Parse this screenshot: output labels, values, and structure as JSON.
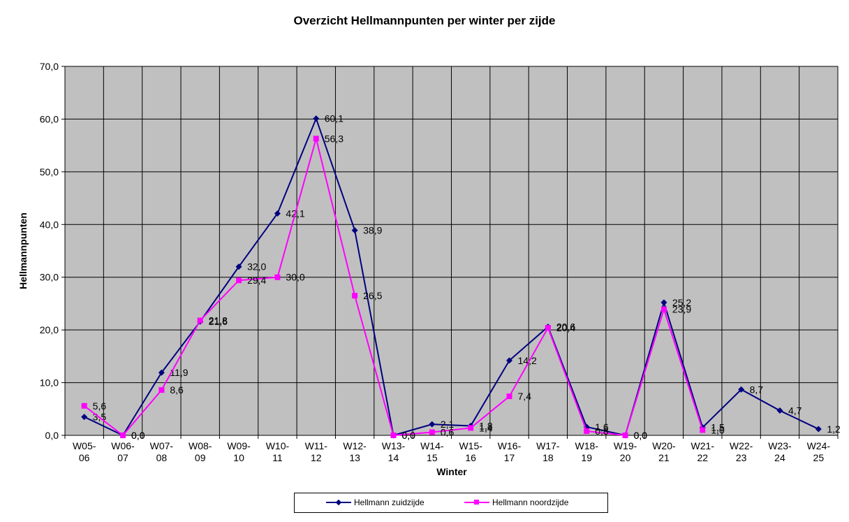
{
  "chart_data": {
    "type": "line",
    "title": "Overzicht Hellmannpunten per winter per zijde",
    "xlabel": "Winter",
    "ylabel": "Hellmannpunten",
    "ylim": [
      0,
      70
    ],
    "yticks": [
      "0,0",
      "10,0",
      "20,0",
      "30,0",
      "40,0",
      "50,0",
      "60,0",
      "70,0"
    ],
    "grid": true,
    "legend_position": "bottom",
    "categories": [
      [
        "W05-",
        "06"
      ],
      [
        "W06-",
        "07"
      ],
      [
        "W07-",
        "08"
      ],
      [
        "W08-",
        "09"
      ],
      [
        "W09-",
        "10"
      ],
      [
        "W10-",
        "11"
      ],
      [
        "W11-",
        "12"
      ],
      [
        "W12-",
        "13"
      ],
      [
        "W13-",
        "14"
      ],
      [
        "W14-",
        "15"
      ],
      [
        "W15-",
        "16"
      ],
      [
        "W16-",
        "17"
      ],
      [
        "W17-",
        "18"
      ],
      [
        "W18-",
        "19"
      ],
      [
        "W19-",
        "20"
      ],
      [
        "W20-",
        "21"
      ],
      [
        "W21-",
        "22"
      ],
      [
        "W22-",
        "23"
      ],
      [
        "W23-",
        "24"
      ],
      [
        "W24-",
        "25"
      ]
    ],
    "series": [
      {
        "name": "Hellmann zuidzijde",
        "color": "#000080",
        "marker": "diamond",
        "values": [
          3.5,
          0.0,
          11.9,
          21.6,
          32.0,
          42.1,
          60.1,
          38.9,
          0.0,
          2.1,
          1.8,
          14.2,
          20.6,
          1.6,
          0.0,
          25.2,
          1.5,
          8.7,
          4.7,
          1.2
        ],
        "labels": [
          "3,5",
          "0,0",
          "11,9",
          "21,6",
          "32,0",
          "42,1",
          "60,1",
          "38,9",
          "0,0",
          "2,1",
          "1,8",
          "14,2",
          "20,6",
          "1,6",
          "0,0",
          "25,2",
          "1,5",
          "8,7",
          "4,7",
          "1,2"
        ]
      },
      {
        "name": "Hellmann noordzijde",
        "color": "#FF00FF",
        "marker": "square",
        "values": [
          5.6,
          0.0,
          8.6,
          21.8,
          29.4,
          30.0,
          56.3,
          26.5,
          0.0,
          0.6,
          1.4,
          7.4,
          20.4,
          0.8,
          0.0,
          23.9,
          1.0,
          null,
          null,
          null
        ],
        "labels": [
          "5,6",
          "0,0",
          "8,6",
          "21,8",
          "29,4",
          "30,0",
          "56,3",
          "26,5",
          "0,0",
          "0,6",
          "1,4",
          "7,4",
          "20,4",
          "0,8",
          "0,0",
          "23,9",
          "1,0",
          null,
          null,
          null
        ]
      }
    ],
    "colors": {
      "plot_background": "#C0C0C0",
      "grid": "#000000"
    }
  }
}
